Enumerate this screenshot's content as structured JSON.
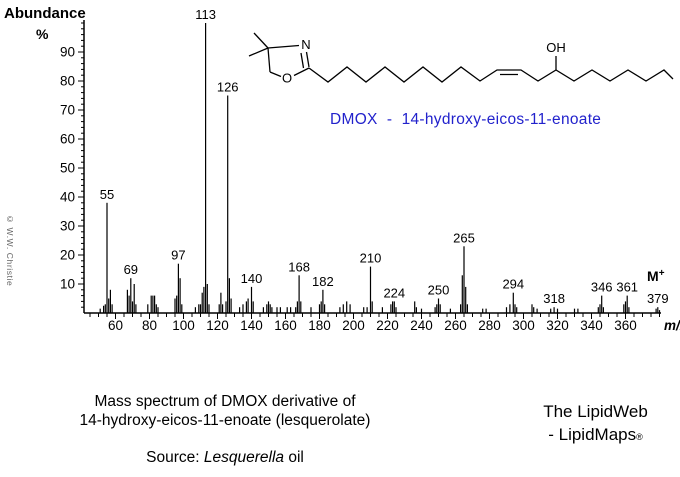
{
  "figure": {
    "ylabel_line1": "Abundance",
    "ylabel_line2": "%",
    "copyright": "© W.W. Christie",
    "compound_label": "DMOX  -  14-hydroxy-eicos-11-enoate",
    "caption_line1": "Mass spectrum of DMOX derivative of",
    "caption_line2": "14-hydroxy-eicos-11-enoate (lesquerolate)",
    "source_prefix": "Source: ",
    "source_italic": "Lesquerella",
    "source_suffix": " oil",
    "brand_line1": "The LipidWeb",
    "brand_line2": "- LipidMaps",
    "brand_reg": "®",
    "structure": {
      "n": "N",
      "o": "O",
      "oh": "OH"
    }
  },
  "chart_data": {
    "type": "bar",
    "subtype": "mass-spectrum-stick-plot",
    "title": "",
    "xlabel": "m/z",
    "ylabel": "Abundance %",
    "xlim": [
      42,
      382
    ],
    "ylim": [
      0,
      100
    ],
    "grid": false,
    "x_major_ticks": [
      60,
      80,
      100,
      120,
      140,
      160,
      180,
      200,
      220,
      240,
      260,
      280,
      300,
      320,
      340,
      360
    ],
    "x_minor_step": 5,
    "y_major_ticks": [
      10,
      20,
      30,
      40,
      50,
      60,
      70,
      80,
      90
    ],
    "y_minor_step": 2,
    "molecular_ion_label": "M+",
    "labeled_peaks": [
      55,
      69,
      97,
      113,
      126,
      140,
      168,
      182,
      210,
      224,
      250,
      265,
      294,
      318,
      346,
      361,
      379
    ],
    "peaks": [
      [
        51,
        1.5
      ],
      [
        53,
        2.5
      ],
      [
        54,
        3
      ],
      [
        55,
        38
      ],
      [
        56,
        5
      ],
      [
        57,
        8
      ],
      [
        58,
        3
      ],
      [
        67,
        8
      ],
      [
        68,
        6
      ],
      [
        69,
        12
      ],
      [
        70,
        4
      ],
      [
        71,
        10
      ],
      [
        72,
        3
      ],
      [
        79,
        3
      ],
      [
        81,
        6
      ],
      [
        82,
        6
      ],
      [
        83,
        6
      ],
      [
        84,
        3
      ],
      [
        85,
        2
      ],
      [
        95,
        5
      ],
      [
        96,
        6
      ],
      [
        97,
        17
      ],
      [
        98,
        12
      ],
      [
        99,
        3
      ],
      [
        107,
        2
      ],
      [
        109,
        3
      ],
      [
        110,
        3
      ],
      [
        111,
        7
      ],
      [
        112,
        9
      ],
      [
        113,
        100
      ],
      [
        114,
        10
      ],
      [
        115,
        3
      ],
      [
        121,
        3
      ],
      [
        122,
        7
      ],
      [
        123,
        3
      ],
      [
        125,
        4
      ],
      [
        126,
        75
      ],
      [
        127,
        12
      ],
      [
        128,
        5
      ],
      [
        133,
        2
      ],
      [
        135,
        3
      ],
      [
        137,
        4
      ],
      [
        138,
        5
      ],
      [
        140,
        9
      ],
      [
        141,
        4
      ],
      [
        147,
        2
      ],
      [
        149,
        3
      ],
      [
        150,
        4
      ],
      [
        151,
        3
      ],
      [
        152,
        2
      ],
      [
        155,
        2
      ],
      [
        157,
        2
      ],
      [
        161,
        2
      ],
      [
        163,
        2
      ],
      [
        166,
        2
      ],
      [
        167,
        4
      ],
      [
        168,
        13
      ],
      [
        169,
        4
      ],
      [
        175,
        2
      ],
      [
        180,
        3
      ],
      [
        181,
        4
      ],
      [
        182,
        8
      ],
      [
        183,
        3
      ],
      [
        192,
        2
      ],
      [
        194,
        3
      ],
      [
        196,
        4
      ],
      [
        198,
        3
      ],
      [
        206,
        2
      ],
      [
        208,
        2
      ],
      [
        210,
        16
      ],
      [
        211,
        4
      ],
      [
        217,
        2
      ],
      [
        222,
        3
      ],
      [
        223,
        4
      ],
      [
        224,
        4
      ],
      [
        225,
        2
      ],
      [
        236,
        4
      ],
      [
        237,
        2
      ],
      [
        240,
        1.5
      ],
      [
        248,
        2
      ],
      [
        249,
        3
      ],
      [
        250,
        5
      ],
      [
        251,
        3
      ],
      [
        257,
        1.5
      ],
      [
        263,
        3
      ],
      [
        264,
        13
      ],
      [
        265,
        23
      ],
      [
        266,
        9
      ],
      [
        267,
        3
      ],
      [
        276,
        1.5
      ],
      [
        278,
        1.5
      ],
      [
        290,
        2
      ],
      [
        292,
        3
      ],
      [
        294,
        7
      ],
      [
        295,
        3
      ],
      [
        296,
        2
      ],
      [
        305,
        3
      ],
      [
        306,
        2
      ],
      [
        308,
        1.5
      ],
      [
        316,
        1.5
      ],
      [
        318,
        2
      ],
      [
        320,
        1.5
      ],
      [
        330,
        1.5
      ],
      [
        332,
        1.5
      ],
      [
        344,
        2
      ],
      [
        345,
        3
      ],
      [
        346,
        6
      ],
      [
        347,
        2
      ],
      [
        359,
        3
      ],
      [
        360,
        4
      ],
      [
        361,
        6
      ],
      [
        362,
        2
      ],
      [
        378,
        1.5
      ],
      [
        379,
        2
      ],
      [
        380,
        1
      ]
    ]
  }
}
